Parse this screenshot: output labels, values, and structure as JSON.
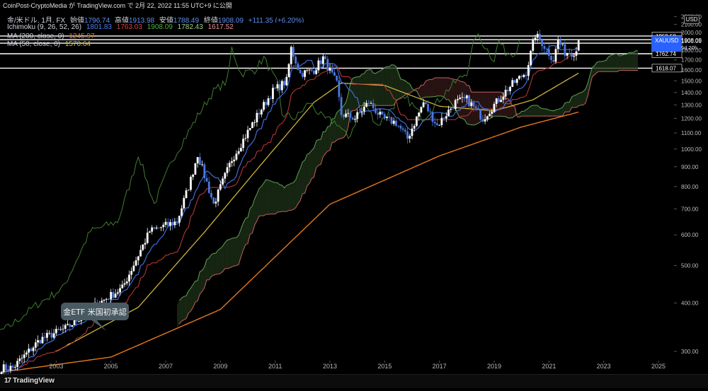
{
  "header": {
    "publish_line": "CoinPost-CryptoMedia が TradingView.com で 2月 22, 2022 11:55 UTC+9 に公開",
    "ohlc": {
      "symbol": "金/米ドル, 1月, FX",
      "open_label": "始値",
      "open": "1796.74",
      "high_label": "高値",
      "high": "1913.98",
      "low_label": "安値",
      "low": "1788.49",
      "close_label": "終値",
      "close": "1908.09",
      "change": "+111.35 (+6.20%)"
    },
    "ichimoku": {
      "label": "Ichimoku (9, 26, 52, 26)",
      "v1": "1801.83",
      "v2": "1763.03",
      "v3": "1908.09",
      "v4": "1782.43",
      "v5": "1617.52"
    },
    "ma200": {
      "label": "MA (200, close, 0)",
      "value": "1245.97"
    },
    "ma50": {
      "label": "MA (50, close, 0)",
      "value": "1570.64"
    }
  },
  "colors": {
    "background": "#000000",
    "candle_up": "#ffffff",
    "candle_down": "#4a78e0",
    "tenkan": "#3f6cdc",
    "kijun": "#c43a3a",
    "chikou": "#3f7d2f",
    "span_a": "#5fa055",
    "span_b": "#c35f5f",
    "ma200": "#e5781d",
    "ma50": "#ddc03a",
    "grid": "#1c1c1c",
    "callout_bg": "#4a5a62"
  },
  "annotation": {
    "text": "金ETF 米国初承認"
  },
  "price_axis": {
    "currency": "USD",
    "ticks": [
      "2200.00",
      "2100.00",
      "2000.00",
      "1900.00",
      "1800.00",
      "1700.00",
      "1600.00",
      "1500.00",
      "1400.00",
      "1300.00",
      "1200.00",
      "1100.00",
      "1000.00",
      "900.00",
      "800.00",
      "700.00",
      "600.00",
      "500.00",
      "400.00",
      "300.00"
    ],
    "marked_levels": [
      "1959.58",
      "1916.80",
      "1876.54",
      "1762.74",
      "1618.07"
    ],
    "last_price": {
      "symbol": "XAUUSD",
      "price": "1908.09",
      "countdown": "6d 20h"
    },
    "hidden_level": "1800.00"
  },
  "time_axis": {
    "labels": [
      "2003",
      "2005",
      "2007",
      "2009",
      "2011",
      "2013",
      "2015",
      "2017",
      "2019",
      "2021",
      "2023",
      "2025"
    ]
  },
  "footer": {
    "brand": "TradingView"
  },
  "chart_data": {
    "type": "candlestick",
    "title": "金/米ドル, 1月, FX",
    "x_range": [
      "2001",
      "2025"
    ],
    "y_scale": "log",
    "y_range": [
      290,
      2250
    ],
    "grid": false,
    "legend": "top-left",
    "last_candle": {
      "open": 1796.74,
      "high": 1913.98,
      "low": 1788.49,
      "close": 1908.09
    },
    "indicators": {
      "ichimoku": [
        1801.83,
        1763.03,
        1908.09,
        1782.43,
        1617.52
      ],
      "ma200": 1245.97,
      "ma50": 1570.64
    },
    "horizontal_levels": [
      1959.58,
      1916.8,
      1876.54,
      1762.74,
      1618.07
    ],
    "price_anchors": [
      [
        "2001-06",
        272
      ],
      [
        "2002-06",
        322
      ],
      [
        "2003-06",
        346
      ],
      [
        "2004-06",
        394
      ],
      [
        "2005-06",
        437
      ],
      [
        "2006-06",
        613
      ],
      [
        "2007-06",
        650
      ],
      [
        "2007-12",
        834
      ],
      [
        "2008-03",
        970
      ],
      [
        "2008-10",
        720
      ],
      [
        "2009-06",
        940
      ],
      [
        "2010-06",
        1245
      ],
      [
        "2010-12",
        1410
      ],
      [
        "2011-06",
        1500
      ],
      [
        "2011-08",
        1820
      ],
      [
        "2011-12",
        1565
      ],
      [
        "2012-06",
        1600
      ],
      [
        "2012-10",
        1720
      ],
      [
        "2013-04",
        1470
      ],
      [
        "2013-06",
        1230
      ],
      [
        "2013-12",
        1202
      ],
      [
        "2014-06",
        1320
      ],
      [
        "2014-12",
        1200
      ],
      [
        "2015-06",
        1170
      ],
      [
        "2015-11",
        1065
      ],
      [
        "2016-06",
        1320
      ],
      [
        "2016-12",
        1150
      ],
      [
        "2017-08",
        1320
      ],
      [
        "2018-01",
        1345
      ],
      [
        "2018-08",
        1200
      ],
      [
        "2019-06",
        1410
      ],
      [
        "2019-09",
        1470
      ],
      [
        "2020-03",
        1580
      ],
      [
        "2020-07",
        1975
      ],
      [
        "2020-10",
        1880
      ],
      [
        "2021-03",
        1700
      ],
      [
        "2021-05",
        1905
      ],
      [
        "2021-08",
        1780
      ],
      [
        "2021-11",
        1776
      ],
      [
        "2022-01",
        1796
      ],
      [
        "2022-02",
        1908
      ]
    ],
    "ma200_anchors": [
      [
        "2001-01",
        265
      ],
      [
        "2005-01",
        290
      ],
      [
        "2009-01",
        385
      ],
      [
        "2013-01",
        720
      ],
      [
        "2017-01",
        960
      ],
      [
        "2020-01",
        1140
      ],
      [
        "2022-02",
        1246
      ]
    ],
    "ma50_anchors": [
      [
        "2003-01",
        300
      ],
      [
        "2006-01",
        390
      ],
      [
        "2008-06",
        610
      ],
      [
        "2010-06",
        900
      ],
      [
        "2012-06",
        1320
      ],
      [
        "2013-06",
        1480
      ],
      [
        "2015-01",
        1460
      ],
      [
        "2017-01",
        1290
      ],
      [
        "2019-01",
        1255
      ],
      [
        "2020-06",
        1340
      ],
      [
        "2022-02",
        1571
      ]
    ]
  }
}
